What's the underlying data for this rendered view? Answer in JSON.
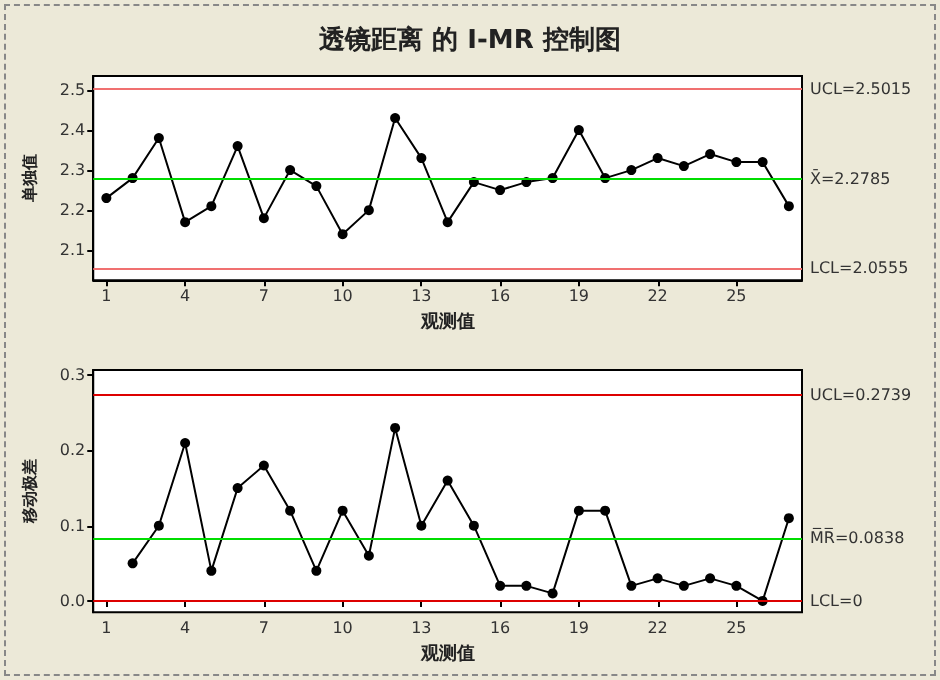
{
  "chart_data": [
    {
      "type": "line",
      "title": "透镜距离 的 I-MR 控制图",
      "xlabel": "观测值",
      "ylabel": "单独值",
      "x": [
        1,
        2,
        3,
        4,
        5,
        6,
        7,
        8,
        9,
        10,
        11,
        12,
        13,
        14,
        15,
        16,
        17,
        18,
        19,
        20,
        21,
        22,
        23,
        24,
        25,
        26,
        27
      ],
      "series": [
        {
          "color": "#000000",
          "values": [
            2.23,
            2.28,
            2.38,
            2.17,
            2.21,
            2.36,
            2.18,
            2.3,
            2.26,
            2.14,
            2.2,
            2.43,
            2.33,
            2.17,
            2.27,
            2.25,
            2.27,
            2.28,
            2.4,
            2.28,
            2.3,
            2.33,
            2.31,
            2.34,
            2.32,
            2.32,
            2.21
          ]
        }
      ],
      "xlim": [
        0.5,
        27.5
      ],
      "xticks": [
        1,
        4,
        7,
        10,
        13,
        16,
        19,
        22,
        25
      ],
      "ylim": [
        2.025,
        2.535
      ],
      "yticks": [
        2.1,
        2.2,
        2.3,
        2.4,
        2.5
      ],
      "marker": "circle",
      "line_style": "solid",
      "grid": false,
      "ref_lines": [
        {
          "axis": "y",
          "value": 2.5015,
          "label": "UCL=2.5015",
          "color": "#f07070"
        },
        {
          "axis": "y",
          "value": 2.2785,
          "label": "X̄=2.2785",
          "color": "#00dd00"
        },
        {
          "axis": "y",
          "value": 2.0555,
          "label": "LCL=2.0555",
          "color": "#f07070"
        }
      ]
    },
    {
      "type": "line",
      "xlabel": "观测值",
      "ylabel": "移动极差",
      "series": [
        {
          "color": "#000000",
          "x": [
            2,
            3,
            4,
            5,
            6,
            7,
            8,
            9,
            10,
            11,
            12,
            13,
            14,
            15,
            16,
            17,
            18,
            19,
            20,
            21,
            22,
            23,
            24,
            25,
            26,
            27
          ],
          "values": [
            0.05,
            0.1,
            0.21,
            0.04,
            0.15,
            0.18,
            0.12,
            0.04,
            0.12,
            0.06,
            0.23,
            0.1,
            0.16,
            0.1,
            0.02,
            0.02,
            0.01,
            0.12,
            0.12,
            0.02,
            0.03,
            0.02,
            0.03,
            0.02,
            0.0,
            0.11
          ]
        }
      ],
      "xlim": [
        0.5,
        27.5
      ],
      "xticks": [
        1,
        4,
        7,
        10,
        13,
        16,
        19,
        22,
        25
      ],
      "ylim": [
        -0.015,
        0.307
      ],
      "yticks": [
        {
          "value": 0,
          "label": "0.0"
        },
        0.1,
        0.2,
        0.3
      ],
      "marker": "circle",
      "line_style": "solid",
      "grid": false,
      "ref_lines": [
        {
          "axis": "y",
          "value": 0.2739,
          "label": "UCL=0.2739",
          "color": "#dd0000"
        },
        {
          "axis": "y",
          "value": 0.0838,
          "label": "M̅R̅=0.0838",
          "color": "#00dd00"
        },
        {
          "axis": "y",
          "value": 0,
          "label": "LCL=0",
          "color": "#dd0000"
        }
      ]
    }
  ]
}
